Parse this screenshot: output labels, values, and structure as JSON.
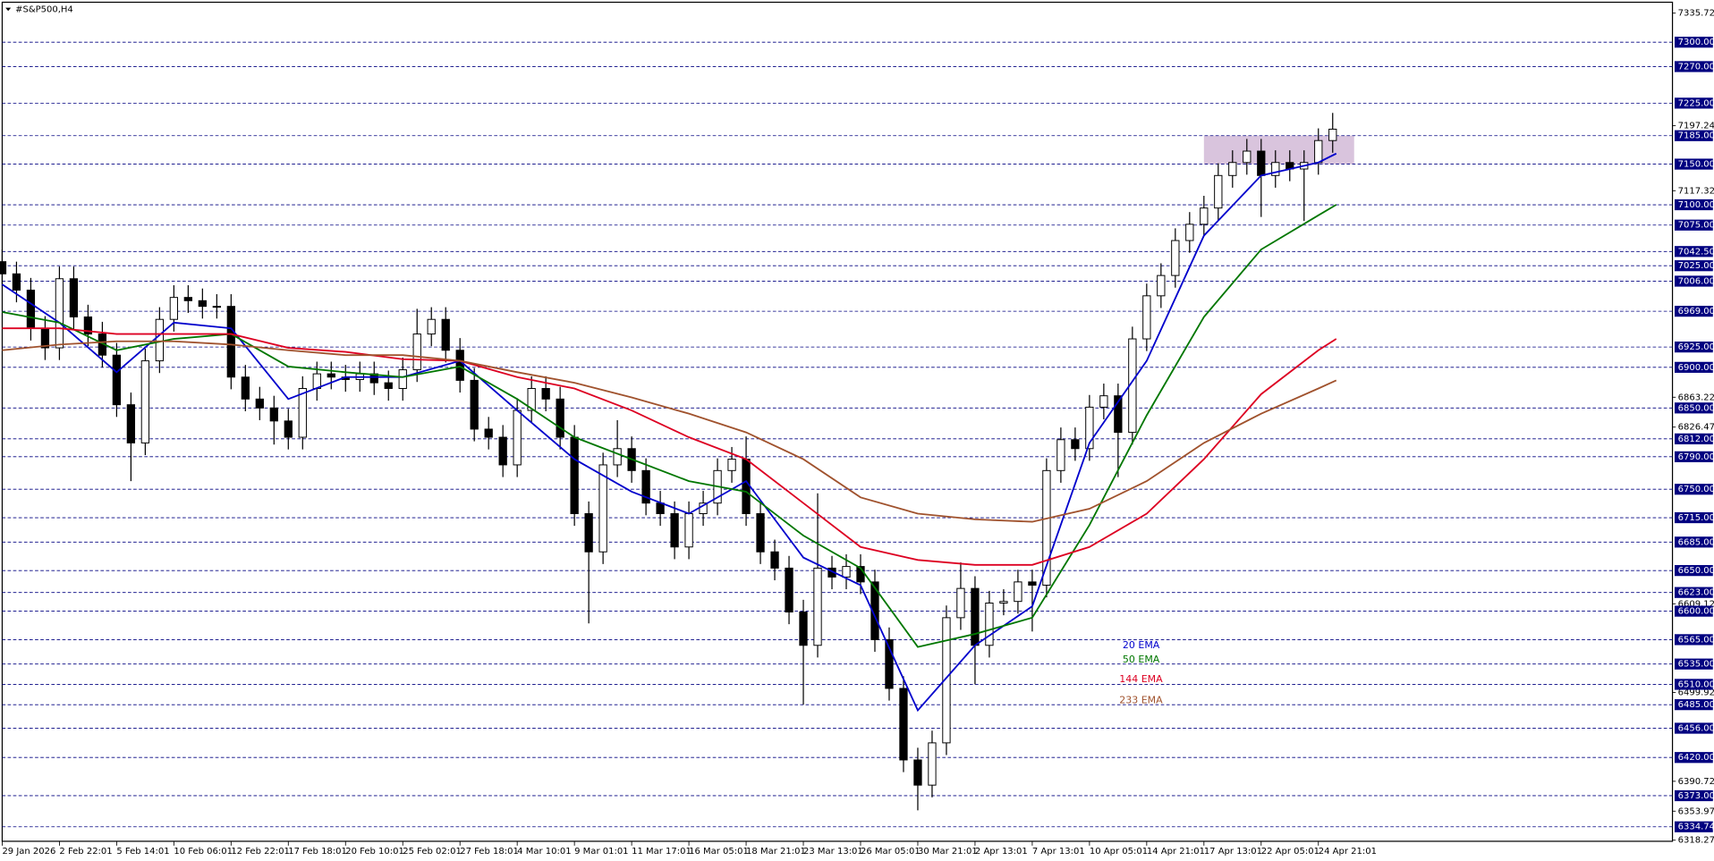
{
  "chart_data": {
    "type": "candlestick",
    "title": "#S&P500,H4",
    "xlim": [
      0,
      467
    ],
    "ylim": [
      6318.27,
      7335.72
    ],
    "xticks": [
      {
        "value": 0,
        "label": "29 Jan 2026"
      },
      {
        "value": 16,
        "label": "2 Feb 22:01"
      },
      {
        "value": 32,
        "label": "5 Feb 14:01"
      },
      {
        "value": 48,
        "label": "10 Feb 06:01"
      },
      {
        "value": 64,
        "label": "12 Feb 22:01"
      },
      {
        "value": 80,
        "label": "17 Feb 18:01"
      },
      {
        "value": 96,
        "label": "20 Feb 10:01"
      },
      {
        "value": 112,
        "label": "25 Feb 02:01"
      },
      {
        "value": 128,
        "label": "27 Feb 18:01"
      },
      {
        "value": 144,
        "label": "4 Mar 10:01"
      },
      {
        "value": 160,
        "label": "9 Mar 01:01"
      },
      {
        "value": 176,
        "label": "11 Mar 17:01"
      },
      {
        "value": 192,
        "label": "16 Mar 05:01"
      },
      {
        "value": 208,
        "label": "18 Mar 21:01"
      },
      {
        "value": 224,
        "label": "23 Mar 13:01"
      },
      {
        "value": 240,
        "label": "26 Mar 05:01"
      },
      {
        "value": 256,
        "label": "30 Mar 21:01"
      },
      {
        "value": 272,
        "label": "2 Apr 13:01"
      },
      {
        "value": 288,
        "label": "7 Apr 13:01"
      },
      {
        "value": 304,
        "label": "10 Apr 05:01"
      },
      {
        "value": 320,
        "label": "14 Apr 21:01"
      },
      {
        "value": 336,
        "label": "17 Apr 13:01"
      },
      {
        "value": 352,
        "label": "22 Apr 05:01"
      },
      {
        "value": 368,
        "label": "24 Apr 21:01"
      }
    ],
    "yticks": [
      {
        "value": 7335.72,
        "label": "7335.72"
      },
      {
        "value": 7197.24,
        "label": "7197.24"
      },
      {
        "value": 7117.32,
        "label": "7117.32"
      },
      {
        "value": 6863.22,
        "label": "6863.22"
      },
      {
        "value": 6826.47,
        "label": "6826.47"
      },
      {
        "value": 6609.12,
        "label": "6609.12"
      },
      {
        "value": 6499.92,
        "label": "6499.92"
      },
      {
        "value": 6390.72,
        "label": "6390.72"
      },
      {
        "value": 6353.97,
        "label": "6353.97"
      },
      {
        "value": 6318.27,
        "label": "6318.27"
      }
    ],
    "levels": [
      {
        "value": 7300,
        "label": "7300.00"
      },
      {
        "value": 7270,
        "label": "7270.00"
      },
      {
        "value": 7225,
        "label": "7225.00"
      },
      {
        "value": 7185,
        "label": "7185.00"
      },
      {
        "value": 7150,
        "label": "7150.00"
      },
      {
        "value": 7100,
        "label": "7100.00"
      },
      {
        "value": 7075,
        "label": "7075.00"
      },
      {
        "value": 7042.5,
        "label": "7042.50"
      },
      {
        "value": 7025,
        "label": "7025.00"
      },
      {
        "value": 7006,
        "label": "7006.00"
      },
      {
        "value": 6969,
        "label": "6969.00"
      },
      {
        "value": 6925,
        "label": "6925.00"
      },
      {
        "value": 6900,
        "label": "6900.00"
      },
      {
        "value": 6850,
        "label": "6850.00"
      },
      {
        "value": 6812,
        "label": "6812.00"
      },
      {
        "value": 6790,
        "label": "6790.00"
      },
      {
        "value": 6750,
        "label": "6750.00"
      },
      {
        "value": 6715,
        "label": "6715.00"
      },
      {
        "value": 6685,
        "label": "6685.00"
      },
      {
        "value": 6650,
        "label": "6650.00"
      },
      {
        "value": 6623,
        "label": "6623.00"
      },
      {
        "value": 6600,
        "label": "6600.00"
      },
      {
        "value": 6565,
        "label": "6565.00"
      },
      {
        "value": 6535,
        "label": "6535.00"
      },
      {
        "value": 6510,
        "label": "6510.00"
      },
      {
        "value": 6485,
        "label": "6485.00"
      },
      {
        "value": 6456,
        "label": "6456.00"
      },
      {
        "value": 6420,
        "label": "6420.00"
      },
      {
        "value": 6373,
        "label": "6373.00"
      },
      {
        "value": 6334.74,
        "label": "6334.74"
      }
    ],
    "level_color": "#000080",
    "zone": {
      "x": [
        336,
        378
      ],
      "y": [
        7150,
        7185
      ],
      "color": "#d9c4dd"
    },
    "candles": {
      "x": [
        0,
        4,
        8,
        12,
        16,
        20,
        24,
        28,
        32,
        36,
        40,
        44,
        48,
        52,
        56,
        60,
        64,
        68,
        72,
        76,
        80,
        84,
        88,
        92,
        96,
        100,
        104,
        108,
        112,
        116,
        120,
        124,
        128,
        132,
        136,
        140,
        144,
        148,
        152,
        156,
        160,
        164,
        168,
        172,
        176,
        180,
        184,
        188,
        192,
        196,
        200,
        204,
        208,
        212,
        216,
        220,
        224,
        228,
        232,
        236,
        240,
        244,
        248,
        252,
        256,
        260,
        264,
        268,
        272,
        276,
        280,
        284,
        288,
        292,
        296,
        300,
        304,
        308,
        312,
        316,
        320,
        324,
        328,
        332,
        336,
        340,
        344,
        348,
        352,
        356,
        360,
        364,
        368,
        372
      ],
      "open": [
        7030,
        7015,
        6995,
        6948,
        6924,
        7009,
        6962,
        6941,
        6915,
        6854,
        6807,
        6908,
        6959,
        6986,
        6982,
        6975,
        6975,
        6888,
        6861,
        6850,
        6834,
        6814,
        6874,
        6892,
        6888,
        6885,
        6892,
        6881,
        6874,
        6897,
        6941,
        6959,
        6921,
        6884,
        6824,
        6814,
        6780,
        6847,
        6874,
        6861,
        6814,
        6720,
        6673,
        6780,
        6800,
        6773,
        6733,
        6720,
        6679,
        6720,
        6733,
        6773,
        6787,
        6720,
        6673,
        6653,
        6599,
        6558,
        6653,
        6642,
        6655,
        6636,
        6565,
        6505,
        6417,
        6386,
        6438,
        6592,
        6628,
        6558,
        6610,
        6612,
        6636,
        6632,
        6773,
        6811,
        6800,
        6851,
        6865,
        6820,
        6935,
        6988,
        7013,
        7056,
        7076,
        7096,
        7136,
        7152,
        7166,
        7136,
        7152,
        7144,
        7152,
        7179
      ],
      "high": [
        7045,
        7030,
        7010,
        6963,
        7024,
        7024,
        6977,
        6956,
        6930,
        6869,
        6923,
        6974,
        7001,
        7001,
        6997,
        6990,
        6990,
        6903,
        6876,
        6865,
        6849,
        6889,
        6907,
        6907,
        6903,
        6907,
        6907,
        6896,
        6912,
        6972,
        6974,
        6974,
        6936,
        6899,
        6839,
        6829,
        6862,
        6889,
        6889,
        6876,
        6829,
        6735,
        6795,
        6835,
        6815,
        6788,
        6748,
        6735,
        6735,
        6748,
        6788,
        6802,
        6815,
        6735,
        6688,
        6668,
        6614,
        6745,
        6668,
        6670,
        6670,
        6651,
        6580,
        6520,
        6432,
        6453,
        6607,
        6660,
        6643,
        6625,
        6627,
        6651,
        6651,
        6788,
        6826,
        6826,
        6866,
        6880,
        6880,
        6950,
        7003,
        7028,
        7071,
        7091,
        7111,
        7151,
        7167,
        7181,
        7181,
        7167,
        7167,
        7167,
        7194,
        7213
      ],
      "low": [
        7000,
        6980,
        6933,
        6909,
        6909,
        6947,
        6926,
        6900,
        6839,
        6760,
        6792,
        6893,
        6944,
        6967,
        6960,
        6960,
        6873,
        6846,
        6835,
        6805,
        6799,
        6799,
        6859,
        6873,
        6870,
        6870,
        6866,
        6859,
        6859,
        6882,
        6926,
        6906,
        6869,
        6809,
        6799,
        6765,
        6765,
        6832,
        6846,
        6799,
        6705,
        6585,
        6658,
        6765,
        6758,
        6718,
        6705,
        6664,
        6664,
        6705,
        6718,
        6758,
        6705,
        6658,
        6638,
        6584,
        6485,
        6543,
        6627,
        6627,
        6621,
        6550,
        6490,
        6402,
        6355,
        6371,
        6423,
        6577,
        6510,
        6543,
        6595,
        6597,
        6575,
        6617,
        6758,
        6785,
        6785,
        6836,
        6765,
        6805,
        6920,
        6973,
        6998,
        7041,
        7061,
        7081,
        7121,
        7137,
        7085,
        7121,
        7129,
        7080,
        7137,
        7164
      ],
      "close": [
        7015,
        6995,
        6948,
        6924,
        7009,
        6962,
        6941,
        6915,
        6854,
        6807,
        6908,
        6959,
        6986,
        6982,
        6975,
        6975,
        6888,
        6861,
        6850,
        6834,
        6814,
        6874,
        6892,
        6888,
        6885,
        6892,
        6881,
        6874,
        6897,
        6941,
        6959,
        6921,
        6884,
        6824,
        6814,
        6780,
        6847,
        6874,
        6861,
        6814,
        6720,
        6673,
        6780,
        6800,
        6773,
        6733,
        6720,
        6679,
        6720,
        6733,
        6773,
        6787,
        6720,
        6673,
        6653,
        6599,
        6558,
        6653,
        6642,
        6655,
        6636,
        6565,
        6505,
        6417,
        6386,
        6438,
        6592,
        6628,
        6558,
        6610,
        6612,
        6636,
        6632,
        6773,
        6811,
        6800,
        6851,
        6865,
        6820,
        6935,
        6988,
        7013,
        7056,
        7076,
        7096,
        7136,
        7152,
        7166,
        7136,
        7152,
        7144,
        7152,
        7179,
        7193
      ]
    },
    "series": [
      {
        "name": "20 EMA",
        "color": "#0000cc",
        "x": [
          0,
          16,
          32,
          48,
          64,
          80,
          96,
          112,
          128,
          144,
          160,
          176,
          192,
          208,
          224,
          240,
          256,
          272,
          288,
          304,
          320,
          336,
          352,
          368,
          373
        ],
        "values": [
          7002,
          6955,
          6894,
          6955,
          6948,
          6861,
          6888,
          6888,
          6908,
          6847,
          6787,
          6747,
          6720,
          6760,
          6666,
          6632,
          6478,
          6558,
          6606,
          6807,
          6908,
          7062,
          7136,
          7152,
          7163
        ]
      },
      {
        "name": "50 EMA",
        "color": "#007700",
        "x": [
          0,
          16,
          32,
          48,
          64,
          80,
          96,
          112,
          128,
          144,
          160,
          176,
          192,
          208,
          224,
          240,
          256,
          272,
          288,
          304,
          320,
          336,
          352,
          368,
          373
        ],
        "values": [
          6968,
          6955,
          6921,
          6935,
          6941,
          6901,
          6894,
          6888,
          6901,
          6861,
          6814,
          6787,
          6760,
          6747,
          6693,
          6653,
          6556,
          6572,
          6592,
          6706,
          6841,
          6962,
          7045,
          7087,
          7100
        ]
      },
      {
        "name": "144 EMA",
        "color": "#dd0022",
        "x": [
          0,
          16,
          32,
          48,
          64,
          80,
          96,
          112,
          128,
          144,
          160,
          176,
          192,
          208,
          224,
          240,
          256,
          272,
          288,
          304,
          320,
          336,
          352,
          368,
          373
        ],
        "values": [
          6948,
          6948,
          6941,
          6941,
          6941,
          6924,
          6919,
          6910,
          6908,
          6888,
          6874,
          6847,
          6814,
          6787,
          6733,
          6679,
          6663,
          6657,
          6657,
          6679,
          6720,
          6787,
          6867,
          6921,
          6935
        ]
      },
      {
        "name": "233 EMA",
        "color": "#a0522d",
        "x": [
          0,
          16,
          32,
          48,
          64,
          80,
          96,
          112,
          128,
          144,
          160,
          176,
          192,
          208,
          224,
          240,
          256,
          272,
          288,
          304,
          320,
          336,
          352,
          368,
          373
        ],
        "values": [
          6921,
          6928,
          6932,
          6932,
          6928,
          6921,
          6915,
          6915,
          6908,
          6894,
          6881,
          6863,
          6843,
          6820,
          6787,
          6740,
          6720,
          6713,
          6710,
          6726,
          6760,
          6807,
          6843,
          6874,
          6884
        ]
      }
    ]
  }
}
